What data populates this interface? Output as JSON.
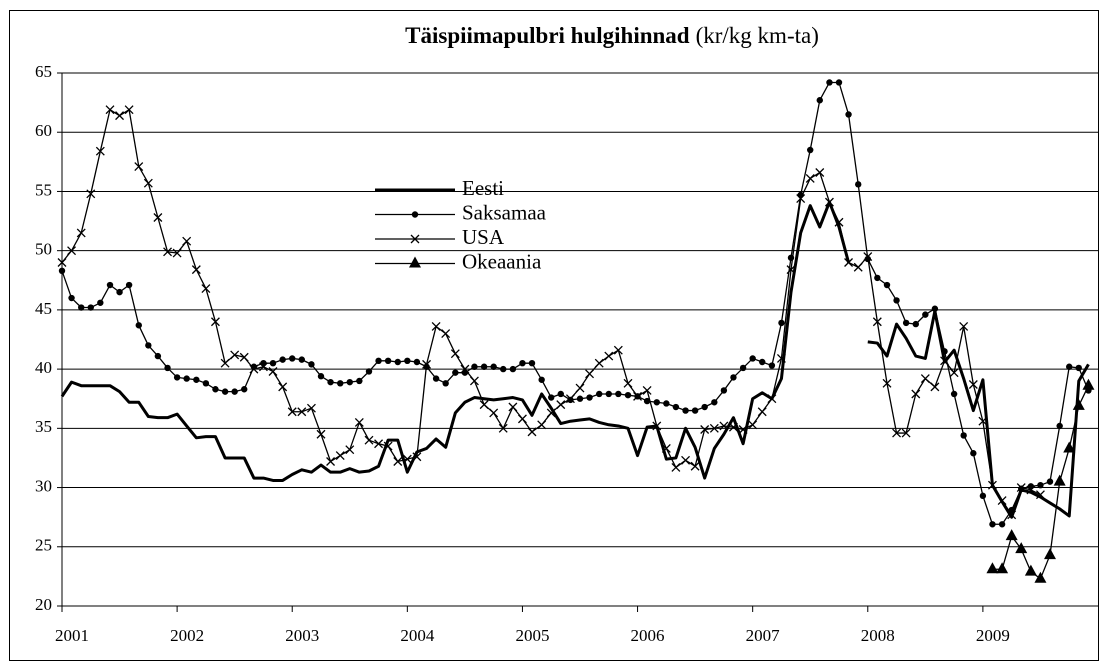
{
  "chart_data": {
    "type": "line",
    "title": "Täispiimapulbri hulgihinnad",
    "subtitle": "(kr/kg km-ta)",
    "xlim": [
      2001,
      2010
    ],
    "xticks": [
      2001,
      2002,
      2003,
      2004,
      2005,
      2006,
      2007,
      2008,
      2009
    ],
    "ylim": [
      20,
      65
    ],
    "yticks": [
      20,
      25,
      30,
      35,
      40,
      45,
      50,
      55,
      60,
      65
    ],
    "grid": true,
    "x": [
      2001,
      2001.083,
      2001.167,
      2001.25,
      2001.333,
      2001.417,
      2001.5,
      2001.583,
      2001.667,
      2001.75,
      2001.833,
      2001.917,
      2002,
      2002.083,
      2002.167,
      2002.25,
      2002.333,
      2002.417,
      2002.5,
      2002.583,
      2002.667,
      2002.75,
      2002.833,
      2002.917,
      2003,
      2003.083,
      2003.167,
      2003.25,
      2003.333,
      2003.417,
      2003.5,
      2003.583,
      2003.667,
      2003.75,
      2003.833,
      2003.917,
      2004,
      2004.083,
      2004.167,
      2004.25,
      2004.333,
      2004.417,
      2004.5,
      2004.583,
      2004.667,
      2004.75,
      2004.833,
      2004.917,
      2005,
      2005.083,
      2005.167,
      2005.25,
      2005.333,
      2005.417,
      2005.5,
      2005.583,
      2005.667,
      2005.75,
      2005.833,
      2005.917,
      2006,
      2006.083,
      2006.167,
      2006.25,
      2006.333,
      2006.417,
      2006.5,
      2006.583,
      2006.667,
      2006.75,
      2006.833,
      2006.917,
      2007,
      2007.083,
      2007.167,
      2007.25,
      2007.333,
      2007.417,
      2007.5,
      2007.583,
      2007.667,
      2007.75,
      2007.833,
      2007.917,
      2008,
      2008.083,
      2008.167,
      2008.25,
      2008.333,
      2008.417,
      2008.5,
      2008.583,
      2008.667,
      2008.75,
      2008.833,
      2008.917,
      2009,
      2009.083,
      2009.167,
      2009.25,
      2009.333,
      2009.417,
      2009.5,
      2009.583,
      2009.667,
      2009.75,
      2009.833,
      2009.917
    ],
    "series": [
      {
        "name": "Eesti",
        "color": "#000000",
        "width": 3,
        "marker": "none",
        "values": [
          37.7,
          38.9,
          38.6,
          38.6,
          38.6,
          38.6,
          38.1,
          37.2,
          37.2,
          36,
          35.9,
          35.9,
          36.2,
          35.2,
          34.2,
          34.3,
          34.3,
          32.5,
          32.5,
          32.5,
          30.8,
          30.8,
          30.6,
          30.6,
          31.1,
          31.5,
          31.3,
          31.9,
          31.3,
          31.3,
          31.6,
          31.3,
          31.4,
          31.8,
          34,
          34,
          31.3,
          33,
          33.3,
          34.1,
          33.4,
          36.3,
          37.2,
          37.6,
          37.5,
          37.4,
          37.5,
          37.6,
          37.4,
          36.1,
          37.9,
          36.7,
          35.4,
          35.6,
          35.7,
          35.8,
          35.5,
          35.3,
          35.2,
          35,
          32.7,
          35.1,
          35.2,
          32.4,
          32.5,
          35,
          33.4,
          30.8,
          33.3,
          34.5,
          35.9,
          33.7,
          37.5,
          38,
          37.5,
          39.2,
          46.5,
          51.5,
          53.8,
          52,
          54.1,
          52,
          49,
          null,
          42.3,
          42.2,
          41.1,
          43.8,
          42.6,
          41.1,
          40.9,
          44.9,
          40.6,
          41.6,
          39.2,
          36.5,
          39.1,
          30.2,
          28.8,
          27.5,
          29.8,
          29.6,
          29.2,
          28.7,
          28.2,
          27.6,
          39,
          40.4
        ]
      },
      {
        "name": "Saksamaa",
        "color": "#000000",
        "width": 1.3,
        "marker": "circle",
        "values": [
          48.3,
          46,
          45.2,
          45.2,
          45.6,
          47.1,
          46.5,
          47.1,
          43.7,
          42,
          41.1,
          40.1,
          39.3,
          39.2,
          39.1,
          38.8,
          38.3,
          38.1,
          38.1,
          38.3,
          40.2,
          40.5,
          40.5,
          40.8,
          40.9,
          40.8,
          40.4,
          39.4,
          38.9,
          38.8,
          38.9,
          39,
          39.8,
          40.7,
          40.7,
          40.6,
          40.7,
          40.6,
          40.2,
          39.2,
          38.8,
          39.7,
          39.7,
          40.2,
          40.2,
          40.2,
          40,
          40,
          40.5,
          40.5,
          39.1,
          37.6,
          37.9,
          37.4,
          37.5,
          37.6,
          37.9,
          37.9,
          37.9,
          37.8,
          37.7,
          37.3,
          37.2,
          37.1,
          36.8,
          36.5,
          36.5,
          36.8,
          37.2,
          38.2,
          39.3,
          40.1,
          40.9,
          40.6,
          40.3,
          43.9,
          49.4,
          54.7,
          58.5,
          62.7,
          64.2,
          64.2,
          61.5,
          55.6,
          49.3,
          47.7,
          47.1,
          45.8,
          43.9,
          43.8,
          44.6,
          45.1,
          41.5,
          37.9,
          34.4,
          32.9,
          29.3,
          26.9,
          26.9,
          28.1,
          29.9,
          30.1,
          30.2,
          30.5,
          35.2,
          40.2,
          40.1,
          38.2
        ]
      },
      {
        "name": "USA",
        "color": "#000000",
        "width": 1.3,
        "marker": "cross",
        "values": [
          49,
          50,
          51.5,
          54.8,
          58.4,
          61.9,
          61.4,
          61.9,
          57.1,
          55.7,
          52.8,
          49.9,
          49.8,
          50.8,
          48.4,
          46.8,
          44,
          40.5,
          41.2,
          41,
          40,
          40.2,
          39.8,
          38.5,
          36.4,
          36.4,
          36.7,
          34.5,
          32.2,
          32.7,
          33.2,
          35.5,
          34,
          33.7,
          33.5,
          32.2,
          32.4,
          32.6,
          40.4,
          43.6,
          43,
          41.3,
          40,
          39,
          37,
          36.3,
          35,
          36.8,
          35.8,
          34.7,
          35.3,
          36.3,
          37,
          37.5,
          38.4,
          39.6,
          40.5,
          41.1,
          41.6,
          38.8,
          37.7,
          38.2,
          35.2,
          33.3,
          31.7,
          32.3,
          31.8,
          34.9,
          35,
          35.2,
          35.1,
          34.9,
          35.3,
          36.4,
          37.5,
          40.9,
          48.4,
          54.4,
          56.1,
          56.6,
          54.1,
          52.4,
          49,
          48.6,
          49.5,
          44,
          38.8,
          34.6,
          34.6,
          37.9,
          39.2,
          38.5,
          40.7,
          39.7,
          43.6,
          38.7,
          35.6,
          30.2,
          28.9,
          27.7,
          30,
          29.8,
          29.4,
          null,
          null,
          null,
          null,
          null
        ]
      },
      {
        "name": "Okeaania",
        "color": "#000000",
        "width": 1.3,
        "marker": "triangle",
        "values": [
          null,
          null,
          null,
          null,
          null,
          null,
          null,
          null,
          null,
          null,
          null,
          null,
          null,
          null,
          null,
          null,
          null,
          null,
          null,
          null,
          null,
          null,
          null,
          null,
          null,
          null,
          null,
          null,
          null,
          null,
          null,
          null,
          null,
          null,
          null,
          null,
          null,
          null,
          null,
          null,
          null,
          null,
          null,
          null,
          null,
          null,
          null,
          null,
          null,
          null,
          null,
          null,
          null,
          null,
          null,
          null,
          null,
          null,
          null,
          null,
          null,
          null,
          null,
          null,
          null,
          null,
          null,
          null,
          null,
          null,
          null,
          null,
          null,
          null,
          null,
          null,
          null,
          null,
          null,
          null,
          null,
          null,
          null,
          null,
          null,
          null,
          null,
          null,
          null,
          null,
          null,
          null,
          null,
          null,
          null,
          null,
          null,
          23.1,
          23.1,
          25.9,
          24.8,
          22.9,
          22.3,
          24.3,
          30.5,
          33.3,
          36.9,
          38.6
        ]
      }
    ]
  }
}
